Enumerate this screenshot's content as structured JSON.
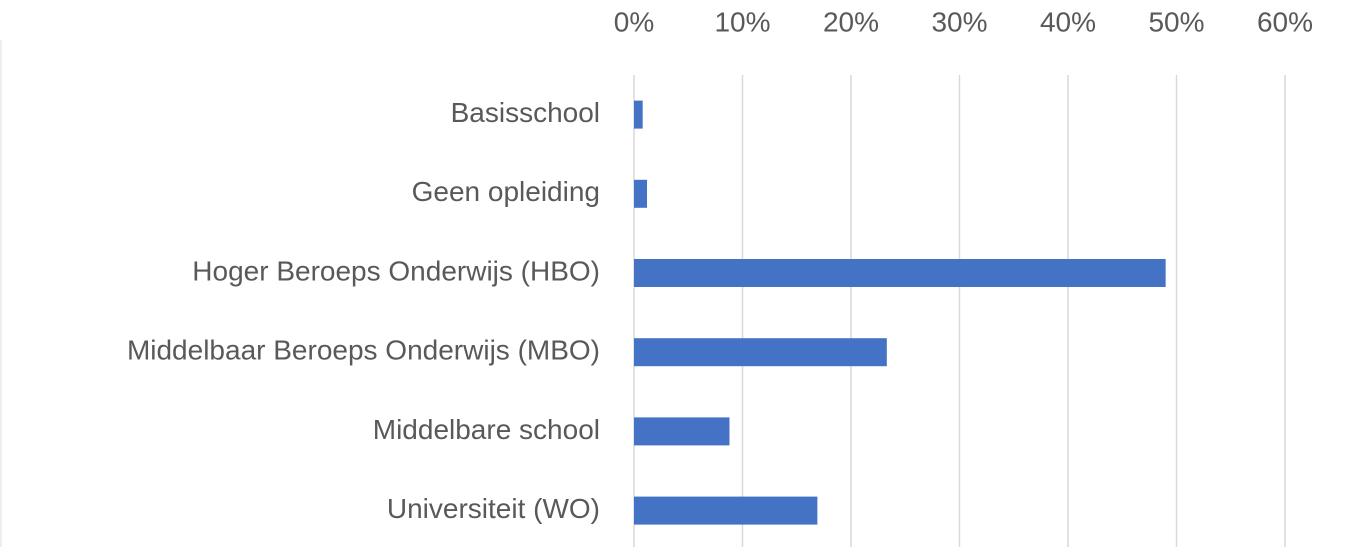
{
  "chart_data": {
    "type": "bar",
    "orientation": "horizontal",
    "categories": [
      "Basisschool",
      "Geen opleiding",
      "Hoger Beroeps Onderwijs (HBO)",
      "Middelbaar Beroeps Onderwijs (MBO)",
      "Middelbare school",
      "Universiteit (WO)"
    ],
    "values": [
      0.8,
      1.2,
      49,
      23.3,
      8.8,
      16.9
    ],
    "color": "#4472c4",
    "xlim": [
      0,
      60
    ],
    "xticks": [
      {
        "value": 0,
        "label": "0%"
      },
      {
        "value": 10,
        "label": "10%"
      },
      {
        "value": 20,
        "label": "20%"
      },
      {
        "value": 30,
        "label": "30%"
      },
      {
        "value": 40,
        "label": "40%"
      },
      {
        "value": 50,
        "label": "50%"
      },
      {
        "value": 60,
        "label": "60%"
      }
    ],
    "grid": true
  }
}
